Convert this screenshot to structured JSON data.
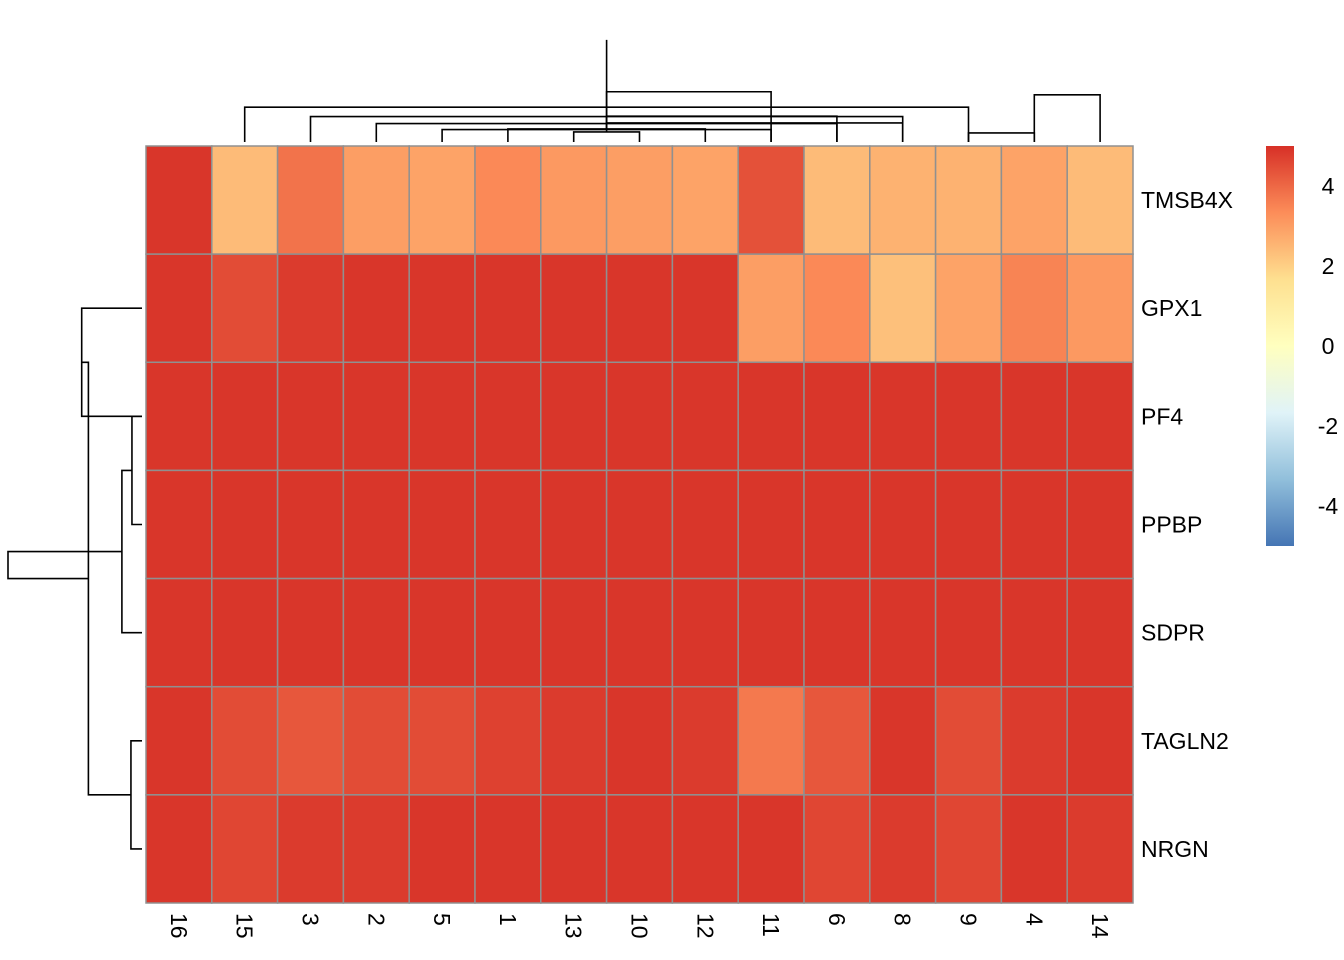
{
  "chart_data": {
    "type": "heatmap",
    "rows": [
      "TMSB4X",
      "GPX1",
      "PF4",
      "PPBP",
      "SDPR",
      "TAGLN2",
      "NRGN"
    ],
    "columns": [
      "16",
      "15",
      "3",
      "2",
      "5",
      "1",
      "13",
      "10",
      "12",
      "11",
      "6",
      "8",
      "9",
      "4",
      "14"
    ],
    "values": [
      [
        4.9,
        2.4,
        3.8,
        3.0,
        2.9,
        3.4,
        3.1,
        3.0,
        2.9,
        4.4,
        2.4,
        2.6,
        2.6,
        2.9,
        2.4
      ],
      [
        4.9,
        4.5,
        4.8,
        4.9,
        4.9,
        4.9,
        4.9,
        4.9,
        4.9,
        3.0,
        3.4,
        2.3,
        2.9,
        3.5,
        3.1
      ],
      [
        4.9,
        4.9,
        4.9,
        4.9,
        4.9,
        4.9,
        4.9,
        4.9,
        4.9,
        4.9,
        4.9,
        4.9,
        4.9,
        4.9,
        4.9
      ],
      [
        4.9,
        4.9,
        4.9,
        4.9,
        4.9,
        4.9,
        4.9,
        4.9,
        4.9,
        4.9,
        4.9,
        4.9,
        4.9,
        4.9,
        4.9
      ],
      [
        4.9,
        4.9,
        4.9,
        4.9,
        4.9,
        4.9,
        4.9,
        4.9,
        4.9,
        4.9,
        4.9,
        4.9,
        4.9,
        4.9,
        4.9
      ],
      [
        4.9,
        4.5,
        4.3,
        4.5,
        4.5,
        4.7,
        4.8,
        4.9,
        4.8,
        3.7,
        4.3,
        4.9,
        4.5,
        4.8,
        4.9
      ],
      [
        4.9,
        4.6,
        4.8,
        4.8,
        4.9,
        4.9,
        4.9,
        4.9,
        4.9,
        4.9,
        4.6,
        4.8,
        4.6,
        4.9,
        4.8
      ]
    ],
    "color_scale": {
      "min": -5,
      "max": 5,
      "stops": [
        "#4575B4",
        "#91BFDB",
        "#E0F3F8",
        "#FFFFBF",
        "#FEE090",
        "#FC8D59",
        "#D73027"
      ]
    },
    "legend": {
      "ticks": [
        4,
        2,
        0,
        -2,
        -4
      ],
      "tick_labels": [
        "4",
        "2",
        "0",
        "-2",
        "-4"
      ],
      "placement": "right"
    },
    "cell_border_color": "#909090",
    "column_dendrogram": {
      "merges": [
        [
          6,
          7,
          0.3
        ],
        [
          5,
          8,
          0.39
        ],
        [
          4,
          9,
          0.37
        ],
        [
          3,
          10,
          0.55
        ],
        [
          2,
          11,
          0.76
        ],
        [
          1,
          12,
          1.04
        ],
        [
          12,
          13,
          0.27
        ],
        [
          11,
          15,
          0.57
        ],
        [
          10,
          16,
          0.77
        ],
        [
          9,
          17,
          1.5
        ],
        [
          13,
          14,
          1.41
        ],
        [
          18,
          19,
          3.05
        ]
      ],
      "max_height": 4.0
    },
    "row_dendrogram": {
      "merges": [
        [
          2,
          3,
          0.3
        ],
        [
          5,
          6,
          0.33
        ],
        [
          4,
          7,
          0.6
        ],
        [
          1,
          2,
          1.8
        ],
        [
          8,
          10,
          1.6
        ],
        [
          9,
          11,
          4.0
        ]
      ],
      "max_height": 4.0
    }
  }
}
